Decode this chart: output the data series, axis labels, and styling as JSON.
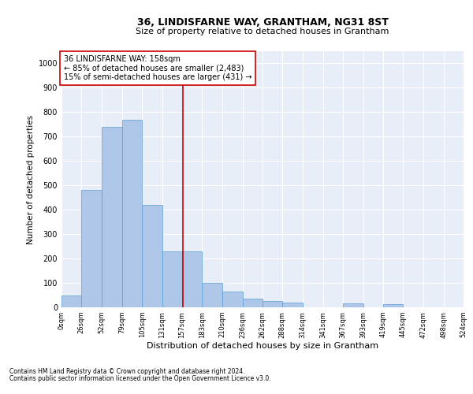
{
  "title": "36, LINDISFARNE WAY, GRANTHAM, NG31 8ST",
  "subtitle": "Size of property relative to detached houses in Grantham",
  "xlabel": "Distribution of detached houses by size in Grantham",
  "ylabel": "Number of detached properties",
  "footnote1": "Contains HM Land Registry data © Crown copyright and database right 2024.",
  "footnote2": "Contains public sector information licensed under the Open Government Licence v3.0.",
  "annotation_line1": "36 LINDISFARNE WAY: 158sqm",
  "annotation_line2": "← 85% of detached houses are smaller (2,483)",
  "annotation_line3": "15% of semi-detached houses are larger (431) →",
  "property_size": 158,
  "bar_edges": [
    0,
    26,
    52,
    79,
    105,
    131,
    157,
    183,
    210,
    236,
    262,
    288,
    314,
    341,
    367,
    393,
    419,
    445,
    472,
    498,
    524
  ],
  "bar_heights": [
    50,
    480,
    740,
    770,
    420,
    230,
    230,
    100,
    65,
    35,
    25,
    20,
    0,
    0,
    15,
    0,
    12,
    0,
    0,
    0
  ],
  "bar_color": "#aec6e8",
  "bar_edge_color": "#5a9fd4",
  "vline_color": "#cc0000",
  "vline_x": 158,
  "annotation_box_color": "#cc0000",
  "background_color": "#e8eef8",
  "grid_color": "#ffffff",
  "ylim": [
    0,
    1050
  ],
  "yticks": [
    0,
    100,
    200,
    300,
    400,
    500,
    600,
    700,
    800,
    900,
    1000
  ],
  "tick_labels": [
    "0sqm",
    "26sqm",
    "52sqm",
    "79sqm",
    "105sqm",
    "131sqm",
    "157sqm",
    "183sqm",
    "210sqm",
    "236sqm",
    "262sqm",
    "288sqm",
    "314sqm",
    "341sqm",
    "367sqm",
    "393sqm",
    "419sqm",
    "445sqm",
    "472sqm",
    "498sqm",
    "524sqm"
  ]
}
